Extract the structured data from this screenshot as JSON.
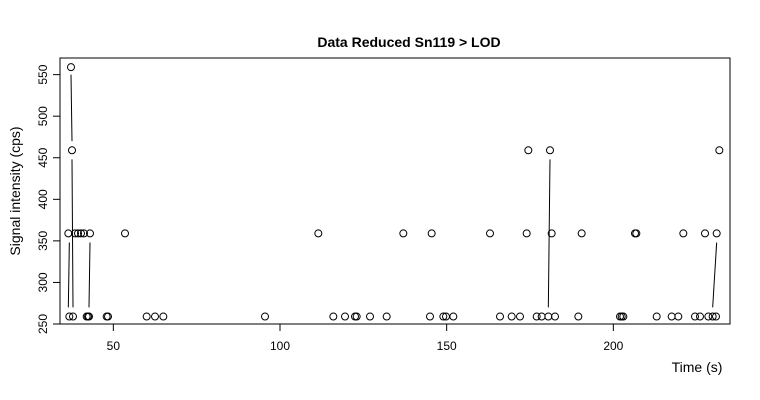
{
  "chart_data": {
    "type": "scatter",
    "title": "Data Reduced Sn119 > LOD",
    "xlabel": "Time (s)",
    "ylabel": "Signal intensity (cps)",
    "xlim": [
      34,
      235
    ],
    "ylim": [
      250,
      570
    ],
    "x_ticks": [
      50,
      100,
      150,
      200
    ],
    "y_ticks": [
      250,
      300,
      350,
      400,
      450,
      500,
      550
    ],
    "grid": false,
    "points": [
      {
        "x": 36.5,
        "y": 359
      },
      {
        "x": 36.8,
        "y": 259
      },
      {
        "x": 37.3,
        "y": 559
      },
      {
        "x": 37.6,
        "y": 459
      },
      {
        "x": 37.9,
        "y": 259
      },
      {
        "x": 38.5,
        "y": 359
      },
      {
        "x": 39.4,
        "y": 359
      },
      {
        "x": 40.3,
        "y": 359
      },
      {
        "x": 41.2,
        "y": 359
      },
      {
        "x": 42.0,
        "y": 259
      },
      {
        "x": 42.4,
        "y": 259
      },
      {
        "x": 42.7,
        "y": 259
      },
      {
        "x": 43.0,
        "y": 359
      },
      {
        "x": 48.0,
        "y": 259
      },
      {
        "x": 48.4,
        "y": 259
      },
      {
        "x": 53.5,
        "y": 359
      },
      {
        "x": 60.0,
        "y": 259
      },
      {
        "x": 62.5,
        "y": 259
      },
      {
        "x": 65.0,
        "y": 259
      },
      {
        "x": 95.5,
        "y": 259
      },
      {
        "x": 111.5,
        "y": 359
      },
      {
        "x": 116.0,
        "y": 259
      },
      {
        "x": 119.5,
        "y": 259
      },
      {
        "x": 122.5,
        "y": 259
      },
      {
        "x": 123.0,
        "y": 259
      },
      {
        "x": 127.0,
        "y": 259
      },
      {
        "x": 132.0,
        "y": 259
      },
      {
        "x": 137.0,
        "y": 359
      },
      {
        "x": 145.0,
        "y": 259
      },
      {
        "x": 145.5,
        "y": 359
      },
      {
        "x": 149.0,
        "y": 259
      },
      {
        "x": 149.8,
        "y": 259
      },
      {
        "x": 152.0,
        "y": 259
      },
      {
        "x": 163.0,
        "y": 359
      },
      {
        "x": 166.0,
        "y": 259
      },
      {
        "x": 169.5,
        "y": 259
      },
      {
        "x": 172.0,
        "y": 259
      },
      {
        "x": 174.0,
        "y": 359
      },
      {
        "x": 174.5,
        "y": 459
      },
      {
        "x": 177.0,
        "y": 259
      },
      {
        "x": 178.5,
        "y": 259
      },
      {
        "x": 180.5,
        "y": 259
      },
      {
        "x": 181.0,
        "y": 459
      },
      {
        "x": 181.5,
        "y": 359
      },
      {
        "x": 182.5,
        "y": 259
      },
      {
        "x": 189.5,
        "y": 259
      },
      {
        "x": 190.5,
        "y": 359
      },
      {
        "x": 202.0,
        "y": 259
      },
      {
        "x": 202.5,
        "y": 259
      },
      {
        "x": 203.0,
        "y": 259
      },
      {
        "x": 206.5,
        "y": 359
      },
      {
        "x": 206.9,
        "y": 359
      },
      {
        "x": 213.0,
        "y": 259
      },
      {
        "x": 217.5,
        "y": 259
      },
      {
        "x": 219.5,
        "y": 259
      },
      {
        "x": 221.0,
        "y": 359
      },
      {
        "x": 224.5,
        "y": 259
      },
      {
        "x": 226.0,
        "y": 259
      },
      {
        "x": 227.5,
        "y": 359
      },
      {
        "x": 228.5,
        "y": 259
      },
      {
        "x": 229.8,
        "y": 259
      },
      {
        "x": 230.8,
        "y": 259
      },
      {
        "x": 231.0,
        "y": 359
      },
      {
        "x": 231.8,
        "y": 459
      }
    ],
    "segments": [
      {
        "x1": 36.5,
        "y1": 270,
        "x2": 36.8,
        "y2": 348
      },
      {
        "x1": 37.3,
        "y1": 550,
        "x2": 37.6,
        "y2": 470
      },
      {
        "x1": 37.6,
        "y1": 448,
        "x2": 37.9,
        "y2": 270
      },
      {
        "x1": 42.7,
        "y1": 270,
        "x2": 43.0,
        "y2": 348
      },
      {
        "x1": 180.5,
        "y1": 270,
        "x2": 181.0,
        "y2": 448
      },
      {
        "x1": 229.8,
        "y1": 270,
        "x2": 231.0,
        "y2": 348
      }
    ]
  }
}
